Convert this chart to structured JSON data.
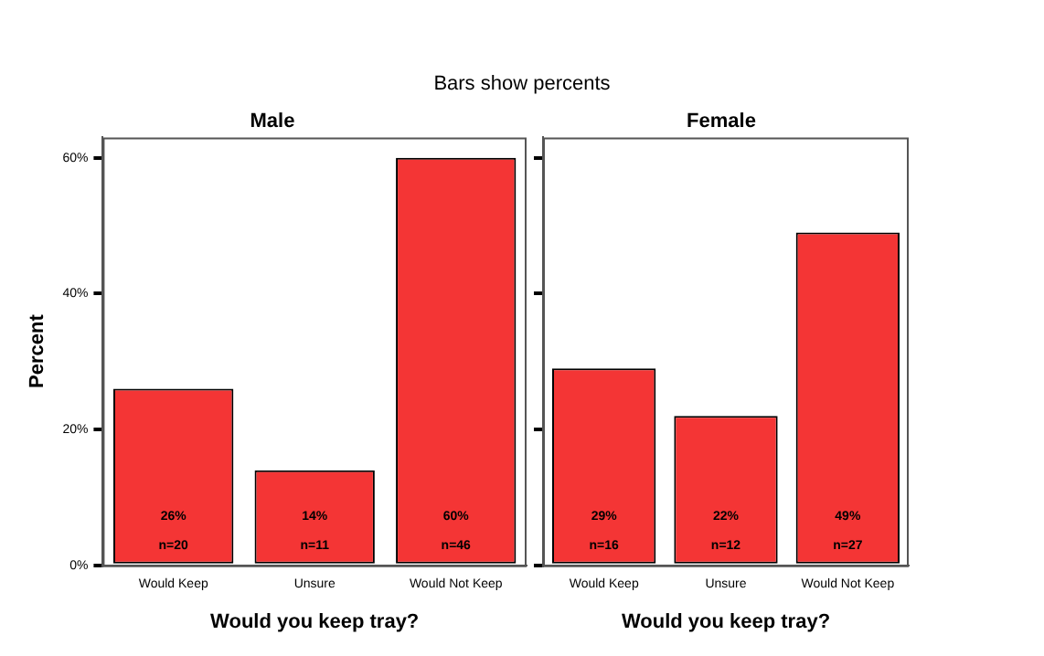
{
  "chart_data": [
    {
      "type": "bar",
      "title": "Male",
      "annotations": [
        "Bars show percents"
      ],
      "xlabel": "Would you keep tray?",
      "ylabel": "Percent",
      "categories": [
        "Would Keep",
        "Unsure",
        "Would Not Keep"
      ],
      "values": [
        26,
        14,
        60
      ],
      "value_labels": [
        "26%\nn=20",
        "14%\nn=11",
        "60%\nn=46"
      ],
      "color": "#f43535",
      "ylim": [
        0,
        63
      ],
      "yticks": [
        {
          "value": 0,
          "label": "0%"
        },
        {
          "value": 20,
          "label": "20%"
        },
        {
          "value": 40,
          "label": "40%"
        },
        {
          "value": 60,
          "label": "60%"
        }
      ],
      "grid": false
    },
    {
      "type": "bar",
      "title": "Female",
      "xlabel": "Would you keep tray?",
      "categories": [
        "Would Keep",
        "Unsure",
        "Would Not Keep"
      ],
      "values": [
        29,
        22,
        49
      ],
      "value_labels": [
        "29%\nn=16",
        "22%\nn=12",
        "49%\nn=27"
      ],
      "color": "#f43535",
      "ylim": [
        0,
        63
      ],
      "yticks": [
        {
          "value": 0,
          "label": null
        },
        {
          "value": 20,
          "label": null
        },
        {
          "value": 40,
          "label": null
        },
        {
          "value": 60,
          "label": null
        }
      ],
      "tick_labels": "x",
      "grid": false
    }
  ]
}
